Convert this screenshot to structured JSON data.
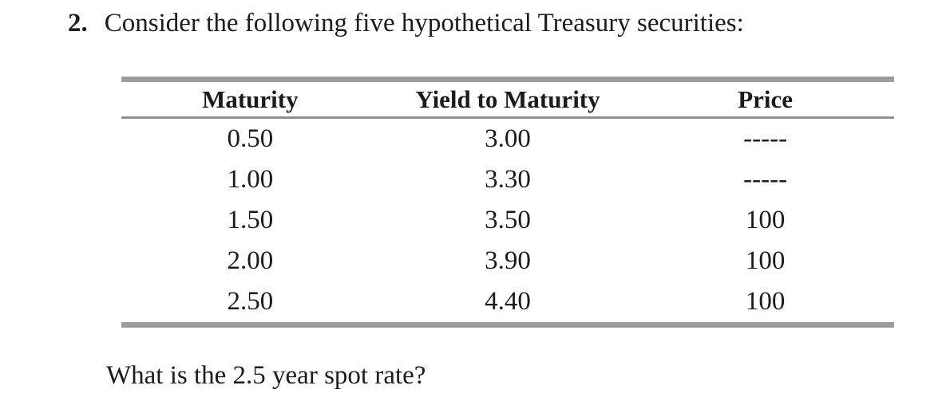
{
  "question": {
    "number": "2.",
    "text": "Consider the following five hypothetical Treasury securities:",
    "followup": "What is the 2.5 year spot rate?"
  },
  "table": {
    "headers": [
      "Maturity",
      "Yield to Maturity",
      "Price"
    ],
    "rows": [
      [
        "0.50",
        "3.00",
        "-----"
      ],
      [
        "1.00",
        "3.30",
        "-----"
      ],
      [
        "1.50",
        "3.50",
        "100"
      ],
      [
        "2.00",
        "3.90",
        "100"
      ],
      [
        "2.50",
        "4.40",
        "100"
      ]
    ]
  },
  "colors": {
    "text": "#1b1b1b",
    "rule_thick": "#9c9c9c",
    "rule_thin": "#8f8f8f",
    "background": "#ffffff"
  }
}
